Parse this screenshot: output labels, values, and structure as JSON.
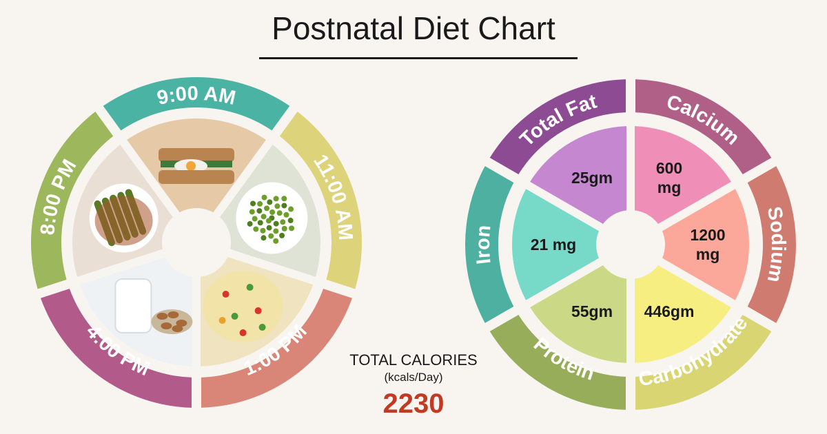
{
  "title": "Postnatal Diet Chart",
  "chart_data": [
    {
      "type": "pie",
      "name": "meal-schedule",
      "categories": [
        "9:00 AM",
        "11:00 AM",
        "1:00 PM",
        "4:00 PM",
        "8:00 PM"
      ],
      "values": [
        1,
        1,
        1,
        1,
        1
      ],
      "colors": [
        "#4bb3a3",
        "#dcd37a",
        "#d98679",
        "#b25a8a",
        "#9db85c"
      ],
      "meal_icons": [
        "egg-sandwich-icon",
        "green-peas-icon",
        "vegetable-rice-icon",
        "milk-almonds-icon",
        "stuffed-okra-icon"
      ]
    },
    {
      "type": "pie",
      "name": "daily-nutrients",
      "categories": [
        "Calcium",
        "Sodium",
        "Carbohydrate",
        "Protein",
        "Iron",
        "Total Fat"
      ],
      "values": [
        1,
        1,
        1,
        1,
        1,
        1
      ],
      "labels": [
        "600\nmg",
        "1200\nmg",
        "446gm",
        "55gm",
        "21 mg",
        "25gm"
      ],
      "ring_colors": [
        "#b05f86",
        "#d07b70",
        "#d8d572",
        "#97ad59",
        "#4db0a0",
        "#8c4b92"
      ],
      "inner_colors": [
        "#ef8fb8",
        "#fba79a",
        "#f7ee82",
        "#cbd987",
        "#77dac9",
        "#c587cf"
      ]
    }
  ],
  "calories": {
    "title": "TOTAL CALORIES",
    "unit": "(kcals/Day)",
    "value": "2230"
  }
}
